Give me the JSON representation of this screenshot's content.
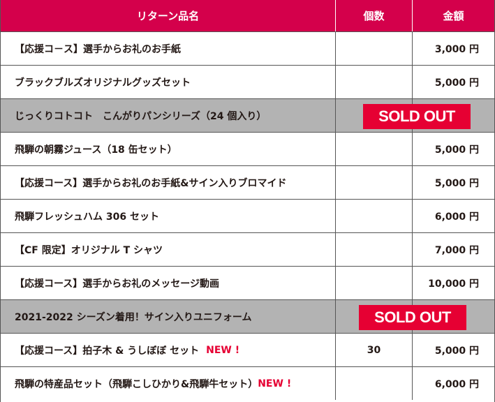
{
  "header": {
    "name": "リターン品名",
    "qty": "個数",
    "price": "金額"
  },
  "sold_out_label": "SOLD OUT",
  "new_label": "NEW !",
  "rows": [
    {
      "name": "【応援コ－ス】選手からお礼のお手紙",
      "qty": "",
      "price": "3,000 円"
    },
    {
      "name": "ブラックブルズオリジナルグッズセット",
      "qty": "",
      "price": "5,000 円"
    },
    {
      "name": "じっくりコトコト　こんがりパンシリーズ（24 個入り）",
      "qty": "",
      "price": ""
    },
    {
      "name": "飛騨の朝霧ジュース（18 缶セット）",
      "qty": "",
      "price": "5,000 円"
    },
    {
      "name": "【応援コース】選手からお礼のお手紙&サイン入りブロマイド",
      "qty": "",
      "price": "5,000 円"
    },
    {
      "name": "飛騨フレッシュハム 306 セット",
      "qty": "",
      "price": "6,000 円"
    },
    {
      "name": "【CF 限定】オリジナル T シャツ",
      "qty": "",
      "price": "7,000 円"
    },
    {
      "name": "【応援コース】選手からお礼のメッセージ動画",
      "qty": "",
      "price": "10,000 円"
    },
    {
      "name": "2021-2022 シーズン着用！サイン入りユニフォーム",
      "qty": "",
      "price": ""
    },
    {
      "name": "【応援コース】拍子木 & うしぼぼ  セット",
      "qty": "30",
      "price": "5,000 円"
    },
    {
      "name": "飛騨の特産品セット（飛騨こしひかり&飛騨牛セット）",
      "qty": "",
      "price": "6,000 円"
    }
  ],
  "colors": {
    "header_bg": "#d4004b",
    "sold_out_bg": "#e60033",
    "new_text": "#e60033",
    "gray_row": "#b3b3b3"
  }
}
